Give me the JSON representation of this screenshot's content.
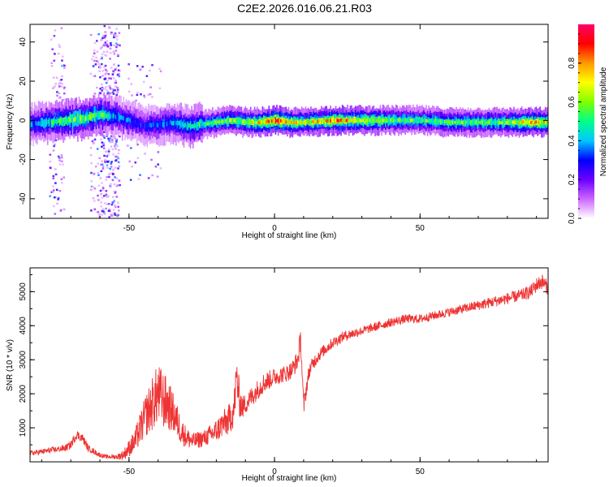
{
  "title": "C2E2.2026.016.06.21.R03",
  "chart_data": [
    {
      "type": "heatmap",
      "xlabel": "Height of straight line (km)",
      "ylabel": "Frequency (Hz)",
      "xlim": [
        -84,
        94
      ],
      "ylim": [
        -50,
        49
      ],
      "xticks": [
        -50,
        0,
        50
      ],
      "yticks": [
        -40,
        -20,
        0,
        20,
        40
      ],
      "colorbar": {
        "label": "Normalized spectral amplitude",
        "range": [
          0,
          1
        ],
        "ticks": [
          "0.0",
          "0.2",
          "0.4",
          "0.6",
          "0.8"
        ],
        "colors": [
          "#ffffff",
          "#cc66ff",
          "#6a00ff",
          "#0000ff",
          "#00c8ff",
          "#00ff88",
          "#80ff00",
          "#ffff00",
          "#ff9900",
          "#ff0000",
          "#ff0066"
        ]
      },
      "ridge": [
        {
          "x": -84,
          "f": -2,
          "amp": 0.35
        },
        {
          "x": -78,
          "f": -1,
          "amp": 0.45
        },
        {
          "x": -72,
          "f": 0,
          "amp": 0.55
        },
        {
          "x": -66,
          "f": 1,
          "amp": 0.6
        },
        {
          "x": -60,
          "f": 3,
          "amp": 0.55
        },
        {
          "x": -55,
          "f": 2,
          "amp": 0.4
        },
        {
          "x": -50,
          "f": 0,
          "amp": 0.35
        },
        {
          "x": -45,
          "f": -3,
          "amp": 0.3
        },
        {
          "x": -40,
          "f": -2,
          "amp": 0.35
        },
        {
          "x": -35,
          "f": -1,
          "amp": 0.4
        },
        {
          "x": -30,
          "f": -3,
          "amp": 0.45
        },
        {
          "x": -25,
          "f": -2,
          "amp": 0.5
        },
        {
          "x": -20,
          "f": -1,
          "amp": 0.55
        },
        {
          "x": -15,
          "f": 0,
          "amp": 0.6
        },
        {
          "x": -10,
          "f": -1,
          "amp": 0.65
        },
        {
          "x": -5,
          "f": -1,
          "amp": 0.7
        },
        {
          "x": 0,
          "f": 0,
          "amp": 0.9
        },
        {
          "x": 5,
          "f": -1,
          "amp": 0.7
        },
        {
          "x": 10,
          "f": -1,
          "amp": 0.65
        },
        {
          "x": 20,
          "f": 0,
          "amp": 0.8
        },
        {
          "x": 30,
          "f": 0,
          "amp": 0.7
        },
        {
          "x": 40,
          "f": 0,
          "amp": 0.6
        },
        {
          "x": 50,
          "f": 0,
          "amp": 0.55
        },
        {
          "x": 60,
          "f": -1,
          "amp": 0.55
        },
        {
          "x": 70,
          "f": -1,
          "amp": 0.55
        },
        {
          "x": 80,
          "f": -1,
          "amp": 0.6
        },
        {
          "x": 88,
          "f": -1,
          "amp": 0.75
        },
        {
          "x": 94,
          "f": -1,
          "amp": 0.7
        }
      ]
    },
    {
      "type": "line",
      "xlabel": "Height of straight line (km)",
      "ylabel": "SNR (10 * v/v)",
      "xlim": [
        -84,
        94
      ],
      "ylim": [
        0,
        5700
      ],
      "xticks": [
        -50,
        0,
        50
      ],
      "yticks": [
        1000,
        2000,
        3000,
        4000,
        5000
      ],
      "line_color": "#ee3333",
      "series": [
        {
          "x": [
            -84,
            -80,
            -76,
            -72,
            -70,
            -68,
            -66,
            -64,
            -62,
            -60,
            -58,
            -56,
            -54,
            -52,
            -50,
            -48,
            -46,
            -44,
            -42,
            -40,
            -38,
            -36,
            -34,
            -32,
            -30,
            -28,
            -26,
            -24,
            -22,
            -20,
            -18,
            -16,
            -14,
            -13,
            -12,
            -11,
            -10,
            -8,
            -6,
            -4,
            -2,
            0,
            2,
            4,
            6,
            8,
            9,
            10,
            11,
            12,
            14,
            16,
            20,
            24,
            28,
            32,
            36,
            40,
            45,
            50,
            55,
            60,
            65,
            70,
            75,
            80,
            85,
            88,
            90,
            92,
            94
          ],
          "y": [
            250,
            300,
            350,
            400,
            500,
            800,
            700,
            400,
            300,
            200,
            150,
            150,
            150,
            200,
            400,
            600,
            1000,
            1400,
            1700,
            2000,
            1800,
            1600,
            1300,
            900,
            700,
            600,
            650,
            700,
            800,
            900,
            1100,
            1200,
            1500,
            2500,
            1800,
            1600,
            1700,
            1900,
            2100,
            2300,
            2400,
            2500,
            2550,
            2600,
            2700,
            3000,
            3600,
            1600,
            2200,
            2700,
            3000,
            3200,
            3500,
            3700,
            3800,
            3900,
            4000,
            4100,
            4200,
            4200,
            4300,
            4400,
            4500,
            4600,
            4700,
            4800,
            4900,
            5000,
            5200,
            5300,
            5100
          ],
          "noise": [
            80,
            80,
            90,
            100,
            120,
            140,
            130,
            100,
            80,
            70,
            60,
            60,
            80,
            150,
            250,
            350,
            500,
            650,
            800,
            900,
            850,
            700,
            550,
            400,
            300,
            250,
            250,
            250,
            300,
            350,
            400,
            450,
            500,
            700,
            500,
            350,
            300,
            300,
            300,
            300,
            280,
            260,
            250,
            250,
            260,
            300,
            350,
            300,
            250,
            220,
            200,
            180,
            160,
            150,
            140,
            130,
            130,
            130,
            130,
            130,
            130,
            130,
            140,
            150,
            160,
            170,
            180,
            200,
            220,
            220,
            220
          ]
        }
      ]
    }
  ]
}
